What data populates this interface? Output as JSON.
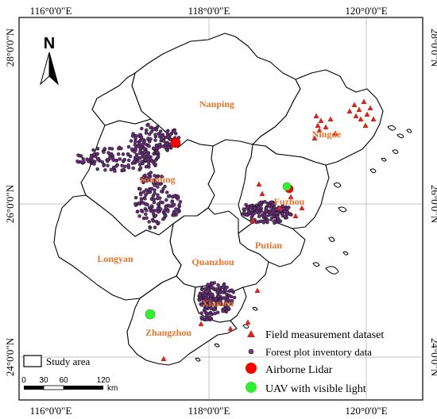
{
  "coordinates": {
    "top": [
      "116°0'0\"E",
      "118°0'0\"E",
      "120°0'0\"E"
    ],
    "bottom": [
      "116°0'0\"E",
      "118°0'0\"E",
      "120°0'0\"E"
    ],
    "left": [
      "28°0'0\"N",
      "26°0'0\"N",
      "24°0'0\"N"
    ],
    "right": [
      "28°0'0\"N",
      "26°0'0\"N",
      "24°0'0\"N"
    ]
  },
  "north_arrow": {
    "letter": "N"
  },
  "cities": [
    {
      "id": "nanping",
      "name": "Nanping"
    },
    {
      "id": "ningde",
      "name": "Ningde"
    },
    {
      "id": "sanming",
      "name": "Sanming"
    },
    {
      "id": "fuzhou",
      "name": "Fuzhou"
    },
    {
      "id": "putian",
      "name": "Putian"
    },
    {
      "id": "longyan",
      "name": "Longyan"
    },
    {
      "id": "quanzhou",
      "name": "Quanzhou"
    },
    {
      "id": "xiamen",
      "name": "Xiamen"
    },
    {
      "id": "zhangzhou",
      "name": "Zhangzhou"
    }
  ],
  "legend": {
    "study_area": "Study area",
    "items": [
      {
        "label": "Field measurement dataset",
        "symbol": "triangle",
        "color": "#d9241c"
      },
      {
        "label": "Forest plot inventory data",
        "symbol": "dot",
        "color": "#7a3b8c"
      },
      {
        "label": "Airborne Lidar",
        "symbol": "circle",
        "color": "#ff0000"
      },
      {
        "label": "UAV with visible light",
        "symbol": "circle",
        "color": "#33ee33"
      }
    ]
  },
  "scale_bar": {
    "ticks": [
      "0",
      "30",
      "60",
      "120"
    ],
    "unit": "km"
  },
  "colors": {
    "plot_dot": "#6b2f7e",
    "triangle": "#d9241c",
    "lidar": "#ff0000",
    "uav": "#33ee33",
    "city_label": "#e8732a"
  }
}
